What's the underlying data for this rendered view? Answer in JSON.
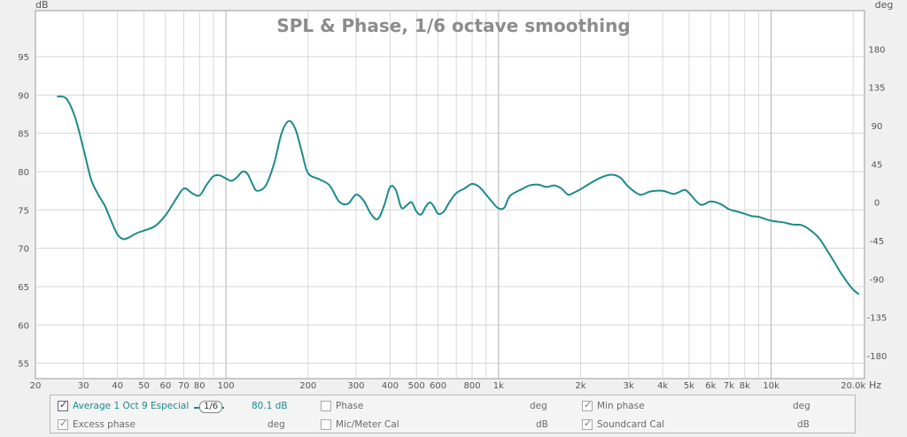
{
  "chart_data": {
    "type": "line",
    "title": "SPL & Phase, 1/6 octave smoothing",
    "xlabel": "Hz",
    "ylabel": "dB",
    "y2label": "deg",
    "xscale": "log",
    "xlim": [
      20,
      22000
    ],
    "ylim": [
      53,
      101
    ],
    "y2lim": [
      -207,
      225
    ],
    "x_ticks": [
      {
        "v": 20,
        "label": "20"
      },
      {
        "v": 30,
        "label": "30"
      },
      {
        "v": 40,
        "label": "40"
      },
      {
        "v": 50,
        "label": "50"
      },
      {
        "v": 60,
        "label": "60"
      },
      {
        "v": 70,
        "label": "70"
      },
      {
        "v": 80,
        "label": "80"
      },
      {
        "v": 100,
        "label": "100"
      },
      {
        "v": 200,
        "label": "200"
      },
      {
        "v": 300,
        "label": "300"
      },
      {
        "v": 400,
        "label": "400"
      },
      {
        "v": 500,
        "label": "500"
      },
      {
        "v": 600,
        "label": "600"
      },
      {
        "v": 800,
        "label": "800"
      },
      {
        "v": 1000,
        "label": "1k"
      },
      {
        "v": 2000,
        "label": "2k"
      },
      {
        "v": 3000,
        "label": "3k"
      },
      {
        "v": 4000,
        "label": "4k"
      },
      {
        "v": 5000,
        "label": "5k"
      },
      {
        "v": 6000,
        "label": "6k"
      },
      {
        "v": 7000,
        "label": "7k"
      },
      {
        "v": 8000,
        "label": "8k"
      },
      {
        "v": 10000,
        "label": "10k"
      },
      {
        "v": 20000,
        "label": "20.0k"
      }
    ],
    "y_ticks": [
      "55",
      "60",
      "65",
      "70",
      "75",
      "80",
      "85",
      "90",
      "95"
    ],
    "y2_ticks": [
      "-180",
      "-135",
      "-90",
      "-45",
      "0",
      "45",
      "90",
      "135",
      "180"
    ],
    "grid": true,
    "series": [
      {
        "name": "Average 1 Oct 9 Especial",
        "color": "#1e8a8a",
        "x": [
          24,
          26,
          28,
          30,
          32,
          34,
          36,
          38,
          40,
          42,
          44,
          46,
          48,
          50,
          55,
          60,
          65,
          70,
          75,
          80,
          85,
          90,
          95,
          100,
          105,
          110,
          115,
          120,
          125,
          130,
          140,
          150,
          160,
          170,
          180,
          190,
          200,
          220,
          240,
          260,
          280,
          300,
          320,
          340,
          360,
          380,
          400,
          420,
          440,
          460,
          480,
          500,
          520,
          540,
          560,
          580,
          600,
          630,
          660,
          700,
          750,
          800,
          850,
          900,
          950,
          1000,
          1050,
          1100,
          1200,
          1300,
          1400,
          1500,
          1600,
          1700,
          1800,
          1900,
          2000,
          2200,
          2400,
          2600,
          2800,
          3000,
          3300,
          3600,
          4000,
          4400,
          4800,
          5000,
          5500,
          6000,
          6500,
          7000,
          7500,
          8000,
          8500,
          9000,
          10000,
          11000,
          12000,
          13000,
          14000,
          15000,
          16000,
          17000,
          18000,
          19000,
          20000,
          21000
        ],
        "values": [
          89.8,
          89.5,
          87.0,
          83.0,
          79.0,
          77.0,
          75.5,
          73.5,
          71.8,
          71.2,
          71.4,
          71.8,
          72.1,
          72.3,
          72.9,
          74.3,
          76.2,
          77.8,
          77.2,
          76.9,
          78.3,
          79.4,
          79.5,
          79.1,
          78.8,
          79.3,
          80.0,
          79.7,
          78.4,
          77.5,
          78.2,
          81.0,
          85.0,
          86.6,
          85.5,
          82.5,
          79.8,
          79.0,
          78.2,
          76.1,
          75.8,
          77.0,
          76.2,
          74.5,
          73.8,
          75.5,
          78.0,
          77.6,
          75.3,
          75.6,
          76.0,
          74.8,
          74.4,
          75.4,
          76.0,
          75.4,
          74.5,
          74.8,
          76.0,
          77.2,
          77.8,
          78.4,
          78.0,
          77.0,
          76.0,
          75.2,
          75.3,
          76.8,
          77.6,
          78.2,
          78.3,
          78.0,
          78.2,
          77.8,
          77.0,
          77.3,
          77.7,
          78.6,
          79.3,
          79.6,
          79.2,
          78.0,
          77.0,
          77.4,
          77.5,
          77.1,
          77.6,
          77.2,
          75.7,
          76.1,
          75.8,
          75.1,
          74.8,
          74.5,
          74.2,
          74.1,
          73.6,
          73.4,
          73.1,
          73.0,
          72.3,
          71.3,
          69.8,
          68.3,
          66.8,
          65.6,
          64.6,
          64.0
        ]
      }
    ]
  },
  "legend": {
    "row1": {
      "series_label": "Average 1 Oct 9 Especial",
      "smoothing": "1/6",
      "value": "80.1 dB",
      "phase_label": "Phase",
      "phase_unit": "deg",
      "min_phase_label": "Min phase",
      "min_phase_unit": "deg"
    },
    "row2": {
      "excess_phase_label": "Excess phase",
      "excess_phase_unit": "deg",
      "mic_cal_label": "Mic/Meter Cal",
      "mic_cal_unit": "dB",
      "soundcard_cal_label": "Soundcard Cal",
      "soundcard_cal_unit": "dB"
    }
  }
}
